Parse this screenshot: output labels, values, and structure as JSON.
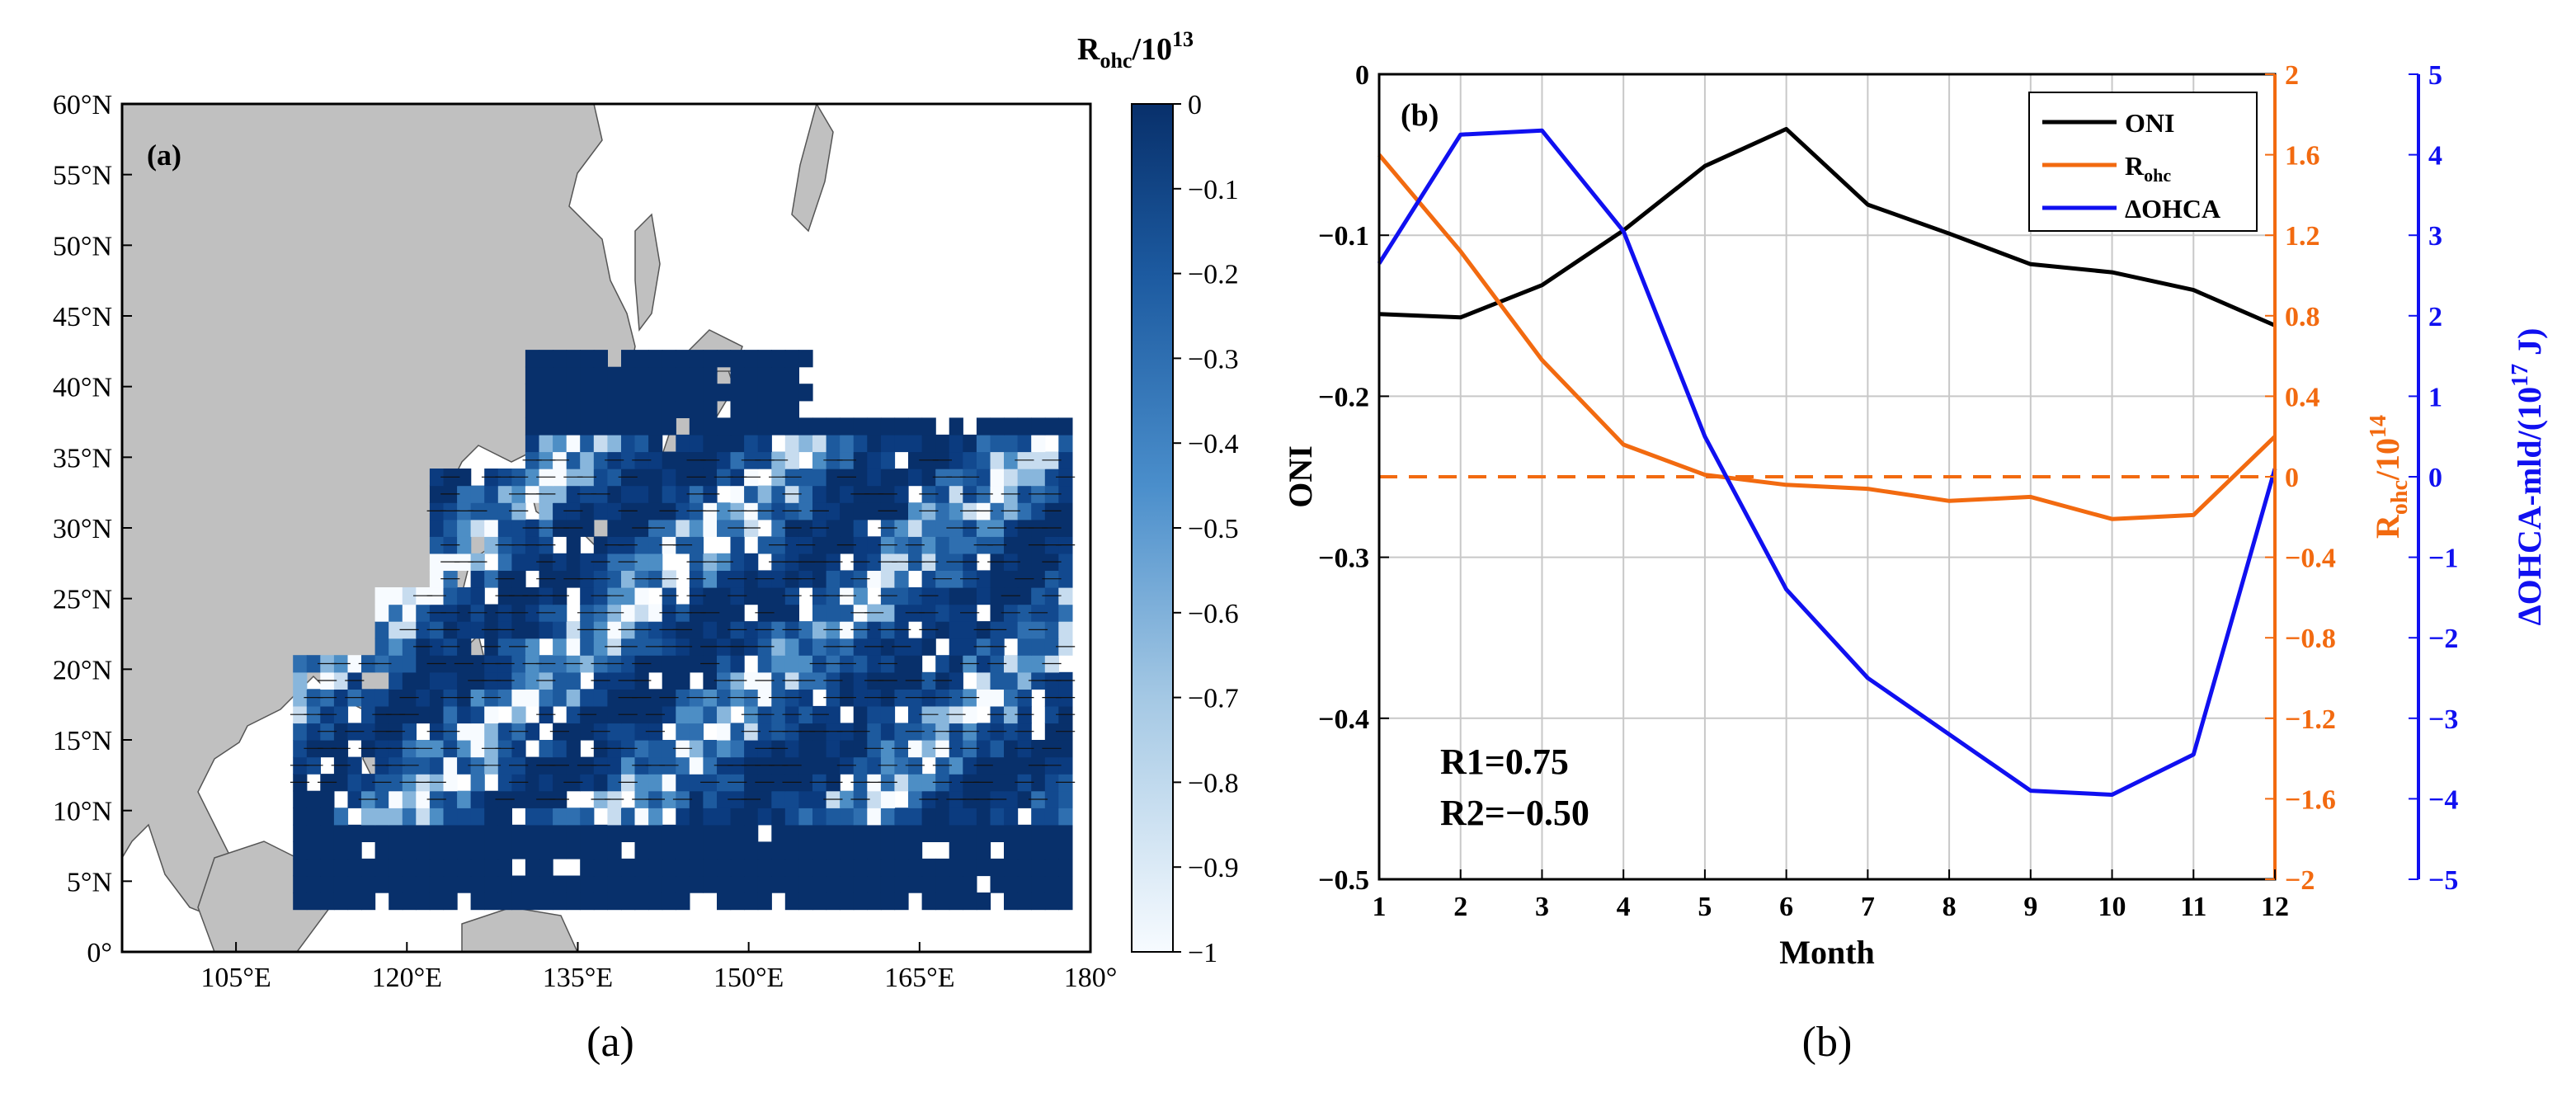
{
  "panel_a": {
    "tag": "(a)",
    "caption": "(a)",
    "lat_labels": [
      "60°N",
      "55°N",
      "50°N",
      "45°N",
      "40°N",
      "35°N",
      "30°N",
      "25°N",
      "20°N",
      "15°N",
      "10°N",
      "5°N",
      "0°"
    ],
    "lon_labels": [
      "105°E",
      "120°E",
      "135°E",
      "150°E",
      "165°E",
      "180°"
    ],
    "colorbar": {
      "title_main": "R",
      "title_sub": "ohc",
      "title_rest": "/10",
      "title_exp": "13",
      "ticks": [
        "0",
        "−0.1",
        "−0.2",
        "−0.3",
        "−0.4",
        "−0.5",
        "−0.6",
        "−0.7",
        "−0.8",
        "−0.9",
        "−1"
      ],
      "color_top": "#08306b",
      "color_bottom": "#f7fbff"
    },
    "land_color": "#c0c0c0",
    "ocean_color": "#1d5a9e"
  },
  "panel_b": {
    "tag": "(b)",
    "caption": "(b)",
    "xlabel": "Month",
    "y_left_label": "ONI",
    "y_right1_label_main": "R",
    "y_right1_label_sub": "ohc",
    "y_right1_label_rest": "/10",
    "y_right1_label_exp": "14",
    "y_right2_label": "ΔOHCA-mld/(10",
    "y_right2_label_exp": "17",
    "y_right2_label_end": " J)",
    "x_ticks": [
      "1",
      "2",
      "3",
      "4",
      "5",
      "6",
      "7",
      "8",
      "9",
      "10",
      "11",
      "12"
    ],
    "y_left_ticks": [
      "0",
      "−0.1",
      "−0.2",
      "−0.3",
      "−0.4",
      "−0.5"
    ],
    "y_right1_ticks": [
      "2",
      "1.6",
      "1.2",
      "0.8",
      "0.4",
      "0",
      "−0.4",
      "−0.8",
      "−1.2",
      "−1.6",
      "−2"
    ],
    "y_right2_ticks": [
      "5",
      "4",
      "3",
      "2",
      "1",
      "0",
      "−1",
      "−2",
      "−3",
      "−4",
      "−5"
    ],
    "legend": {
      "oni": "ONI",
      "rohc_main": "R",
      "rohc_sub": "ohc",
      "dohca": "ΔOHCA"
    },
    "annot_r1": "R1=0.75",
    "annot_r2": "R2=−0.50",
    "colors": {
      "oni": "#000000",
      "rohc": "#f26a10",
      "dohca": "#1010f0",
      "grid": "#c8c8c8"
    }
  },
  "chart_data": [
    {
      "type": "heatmap",
      "title": "(a)",
      "xlabel": "",
      "ylabel": "",
      "x_range": [
        95,
        180
      ],
      "y_range": [
        0,
        60
      ],
      "colorbar_label": "Rohc/10^13",
      "colorbar_range": [
        -1,
        0
      ]
    },
    {
      "type": "line",
      "title": "(b)",
      "xlabel": "Month",
      "x": [
        1,
        2,
        3,
        4,
        5,
        6,
        7,
        8,
        9,
        10,
        11,
        12
      ],
      "series": [
        {
          "name": "ONI",
          "axis": "left",
          "values": [
            -0.149,
            -0.151,
            -0.131,
            -0.097,
            -0.057,
            -0.034,
            -0.081,
            -0.099,
            -0.118,
            -0.123,
            -0.134,
            -0.156
          ]
        },
        {
          "name": "Rohc",
          "axis": "right1",
          "values": [
            1.6,
            1.12,
            0.58,
            0.16,
            0.01,
            -0.04,
            -0.06,
            -0.12,
            -0.1,
            -0.21,
            -0.19,
            0.2
          ]
        },
        {
          "name": "ΔOHCA",
          "axis": "right2",
          "values": [
            2.65,
            4.25,
            4.3,
            3.05,
            0.5,
            -1.4,
            -2.5,
            -3.2,
            -3.9,
            -3.95,
            -3.45,
            0.1
          ]
        }
      ],
      "reference_line": {
        "axis": "right1",
        "value": 0,
        "style": "dashed"
      },
      "ylim_left": [
        -0.5,
        0
      ],
      "ylim_right1": [
        -2,
        2
      ],
      "ylim_right2": [
        -5,
        5
      ],
      "annotations": [
        "R1=0.75",
        "R2=−0.50"
      ]
    }
  ]
}
